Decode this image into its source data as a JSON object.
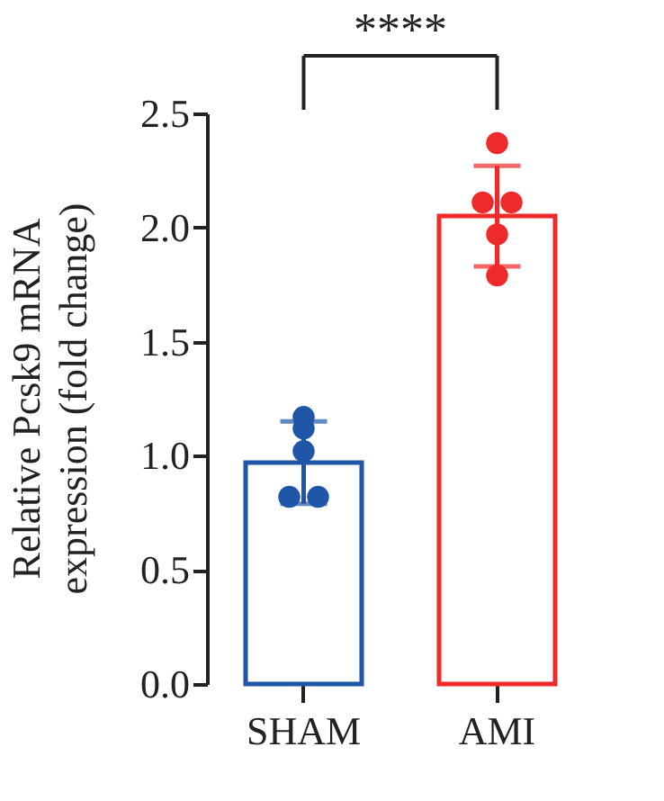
{
  "chart_data": {
    "type": "bar",
    "ylabel": "Relative Pcsk9 mRNA expression (fold change)",
    "categories": [
      "SHAM",
      "AMI"
    ],
    "ylim": [
      0,
      2.5
    ],
    "yticks": [
      {
        "value": 0,
        "label": "0.0"
      },
      {
        "value": 0.5,
        "label": "0.5"
      },
      {
        "value": 1,
        "label": "1.0"
      },
      {
        "value": 1.5,
        "label": "1.5"
      },
      {
        "value": 2,
        "label": "2.0"
      },
      {
        "value": 2.5,
        "label": "2.5"
      }
    ],
    "grid": false,
    "marker": "circle",
    "annotations": [
      "****"
    ],
    "series": [
      {
        "type": "bar",
        "colors": [
          "#1f56a8",
          "#ee2a2a"
        ],
        "values": [
          0.97,
          2.05
        ],
        "errors": [
          0.18,
          0.22
        ]
      },
      {
        "type": "scatter",
        "x": [
          "SHAM",
          "SHAM",
          "SHAM",
          "SHAM",
          "SHAM",
          "AMI",
          "AMI",
          "AMI",
          "AMI",
          "AMI"
        ],
        "colors": [
          "#1f56a8",
          "#1f56a8",
          "#1f56a8",
          "#1f56a8",
          "#1f56a8",
          "#ee2a2a",
          "#ee2a2a",
          "#ee2a2a",
          "#ee2a2a",
          "#ee2a2a"
        ],
        "values": [
          1.17,
          1.12,
          1.02,
          0.82,
          0.82,
          2.37,
          2.11,
          2.11,
          1.97,
          1.79
        ]
      }
    ]
  }
}
